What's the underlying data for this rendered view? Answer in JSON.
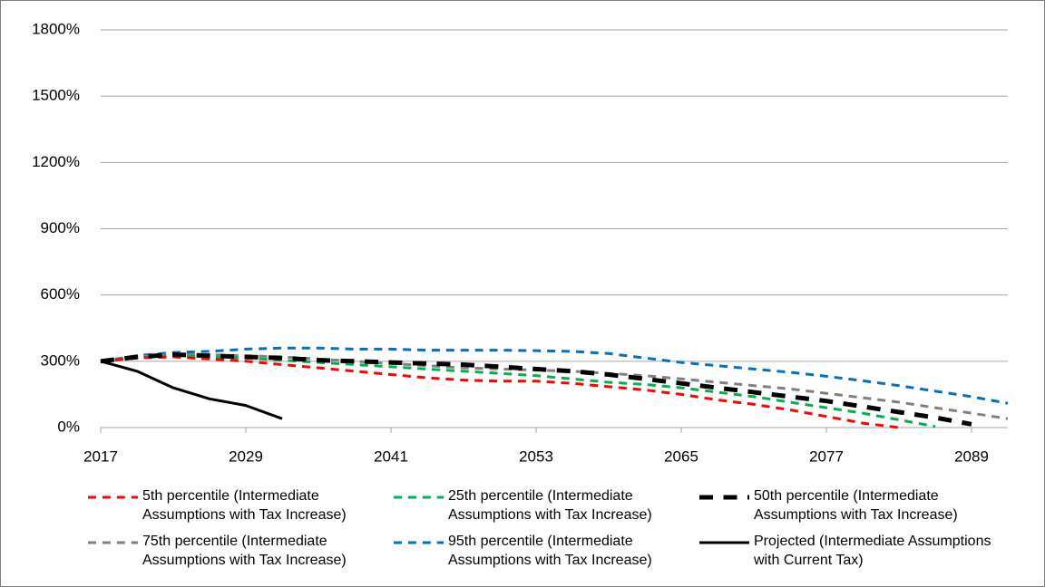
{
  "chart_data": {
    "type": "line",
    "x": [
      2017,
      2020,
      2023,
      2026,
      2029,
      2032,
      2035,
      2038,
      2041,
      2044,
      2047,
      2050,
      2053,
      2056,
      2059,
      2062,
      2065,
      2068,
      2071,
      2074,
      2077,
      2080,
      2083,
      2086,
      2089,
      2092
    ],
    "series": [
      {
        "name": "5th percentile (Intermediate Assumptions with Tax Increase)",
        "color": "#ff0000",
        "style": "dashed",
        "line_width": 3,
        "values": [
          300,
          315,
          320,
          310,
          300,
          285,
          270,
          255,
          240,
          225,
          215,
          210,
          210,
          200,
          185,
          170,
          150,
          125,
          105,
          80,
          50,
          20,
          0,
          null,
          null,
          null
        ]
      },
      {
        "name": "25th percentile (Intermediate Assumptions with Tax Increase)",
        "color": "#00b050",
        "style": "dashed",
        "line_width": 3,
        "values": [
          300,
          315,
          325,
          320,
          315,
          305,
          295,
          285,
          275,
          265,
          255,
          245,
          235,
          220,
          205,
          195,
          180,
          160,
          140,
          115,
          90,
          65,
          35,
          5,
          null,
          null
        ]
      },
      {
        "name": "50th percentile (Intermediate Assumptions with Tax Increase)",
        "color": "#000000",
        "style": "dashed",
        "line_width": 5,
        "values": [
          300,
          320,
          330,
          325,
          320,
          315,
          305,
          300,
          295,
          290,
          285,
          275,
          265,
          255,
          240,
          220,
          200,
          180,
          160,
          140,
          120,
          95,
          70,
          45,
          15,
          null
        ]
      },
      {
        "name": "75th percentile (Intermediate Assumptions with Tax Increase)",
        "color": "#808080",
        "style": "dashed",
        "line_width": 3,
        "values": [
          300,
          320,
          330,
          330,
          325,
          320,
          310,
          300,
          290,
          280,
          270,
          265,
          260,
          255,
          245,
          235,
          220,
          205,
          190,
          175,
          155,
          135,
          115,
          90,
          65,
          40
        ]
      },
      {
        "name": "95th percentile (Intermediate Assumptions with Tax Increase)",
        "color": "#0070c0",
        "style": "dashed",
        "line_width": 3,
        "values": [
          300,
          325,
          340,
          345,
          355,
          360,
          360,
          355,
          355,
          350,
          350,
          350,
          348,
          345,
          335,
          315,
          295,
          280,
          265,
          250,
          232,
          212,
          190,
          165,
          140,
          110
        ]
      },
      {
        "name": "Projected (Intermediate Assumptions with Current Tax)",
        "color": "#000000",
        "style": "solid",
        "line_width": 3,
        "values": [
          300,
          255,
          180,
          130,
          100,
          40,
          null,
          null,
          null,
          null,
          null,
          null,
          null,
          null,
          null,
          null,
          null,
          null,
          null,
          null,
          null,
          null,
          null,
          null,
          null,
          null
        ]
      }
    ],
    "xlim": [
      2017,
      2092
    ],
    "xticks": [
      2017,
      2029,
      2041,
      2053,
      2065,
      2077,
      2089
    ],
    "ylim": [
      0,
      1800
    ],
    "yticks": [
      {
        "value": 0,
        "label": "0%"
      },
      {
        "value": 300,
        "label": "300%"
      },
      {
        "value": 600,
        "label": "600%"
      },
      {
        "value": 900,
        "label": "900%"
      },
      {
        "value": 1200,
        "label": "1200%"
      },
      {
        "value": 1500,
        "label": "1500%"
      },
      {
        "value": 1800,
        "label": "1800%"
      }
    ],
    "grid": true
  }
}
